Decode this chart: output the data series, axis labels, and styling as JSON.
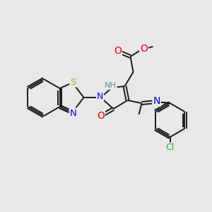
{
  "background_color": "#e8e8e8",
  "bond_color": "#1a1a1a",
  "atom_colors": {
    "N": "#0000ee",
    "O": "#ee0000",
    "S": "#bbaa00",
    "Cl": "#22bb22",
    "C": "#1a1a1a",
    "H": "#559999",
    "NH": "#559999"
  },
  "figsize": [
    3.0,
    3.0
  ],
  "dpi": 100,
  "lw": 1.4,
  "font_size": 8.5,
  "bg": "#e8e8e8"
}
